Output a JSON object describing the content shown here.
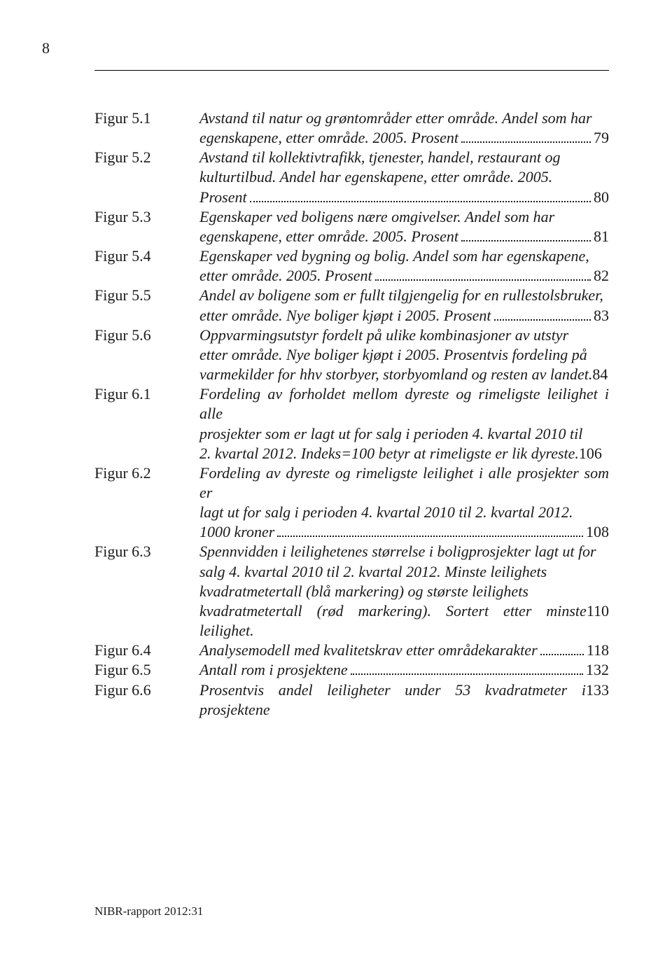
{
  "pageNumber": "8",
  "footer": "NIBR-rapport 2012:31",
  "entries": [
    {
      "label": "Figur 5.1",
      "line1": "Avstand til natur og grøntområder etter område. Andel som har",
      "lastPrefix": "egenskapene, etter område. 2005. Prosent",
      "page": "79"
    },
    {
      "label": "Figur 5.2",
      "line1": "Avstand til kollektivtrafikk, tjenester, handel, restaurant og",
      "line2": "kulturtilbud. Andel har egenskapene, etter område. 2005.",
      "lastPrefix": "Prosent",
      "page": "80"
    },
    {
      "label": "Figur 5.3",
      "line1": "Egenskaper ved boligens nære omgivelser. Andel som har",
      "lastPrefix": "egenskapene, etter område. 2005. Prosent",
      "page": "81"
    },
    {
      "label": "Figur 5.4",
      "line1": "Egenskaper ved bygning og bolig. Andel som har egenskapene,",
      "lastPrefix": "etter område. 2005. Prosent",
      "page": "82"
    },
    {
      "label": "Figur 5.5",
      "line1": "Andel av boligene som er fullt tilgjengelig for en rullestolsbruker,",
      "lastPrefix": "etter område. Nye boliger kjøpt i 2005. Prosent",
      "page": "83"
    },
    {
      "label": "Figur 5.6",
      "line1": "Oppvarmingsutstyr fordelt på ulike kombinasjoner av utstyr",
      "line2": "etter område. Nye boliger kjøpt i 2005. Prosentvis fordeling på",
      "lastPrefix": "varmekilder for hhv storbyer, storbyomland og resten av landet.",
      "page": "84",
      "noDots": true
    },
    {
      "label": "Figur 6.1",
      "line1": "Fordeling av forholdet mellom dyreste og rimeligste leilighet i alle",
      "line2": "prosjekter som er lagt ut for salg i perioden 4. kvartal 2010 til",
      "lastPrefix": "2. kvartal 2012. Indeks=100 betyr at rimeligste er lik dyreste.",
      "page": "106",
      "noDots": true
    },
    {
      "label": "Figur 6.2",
      "line1": "Fordeling av dyreste og rimeligste leilighet i alle prosjekter som er",
      "line2": "lagt ut for salg i perioden 4. kvartal 2010 til 2. kvartal 2012.",
      "lastPrefix": "1000 kroner",
      "page": "108"
    },
    {
      "label": "Figur 6.3",
      "line1": "Spennvidden i leilighetenes størrelse i boligprosjekter lagt ut for",
      "line2": "salg 4. kvartal 2010 til 2. kvartal 2012. Minste leilighets",
      "line3": "kvadratmetertall (blå markering) og største leilighets",
      "lastPrefix": "kvadratmetertall (rød markering). Sortert etter minste leilighet.",
      "page": "110",
      "noDots": true
    },
    {
      "label": "Figur 6.4",
      "lastPrefix": "Analysemodell med kvalitetskrav etter områdekarakter",
      "page": "118"
    },
    {
      "label": "Figur 6.5",
      "lastPrefix": "Antall rom i prosjektene",
      "page": "132"
    },
    {
      "label": "Figur 6.6",
      "lastPrefix": "Prosentvis andel leiligheter under 53 kvadratmeter i prosjektene",
      "page": "133",
      "noDots": true
    }
  ]
}
